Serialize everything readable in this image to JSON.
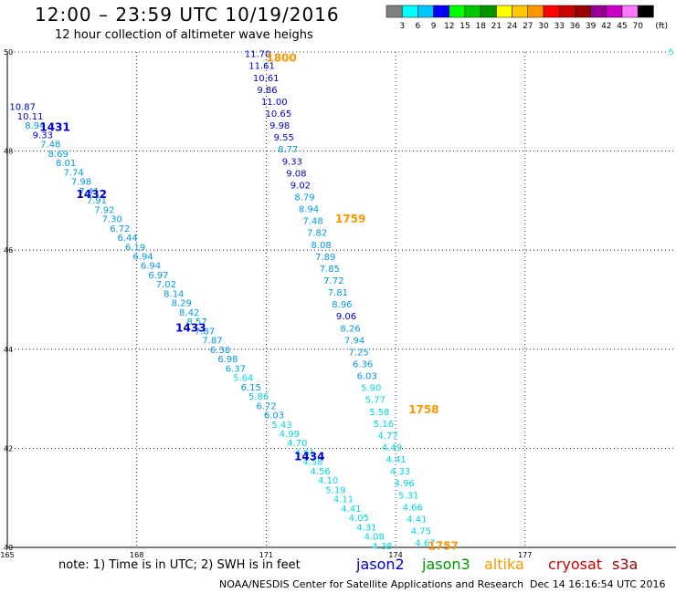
{
  "header": {
    "title": "12:00 – 23:59 UTC 10/19/2016",
    "subtitle": "12 hour collection of altimeter wave heighs"
  },
  "legend": {
    "colors": [
      "#808080",
      "#00ffff",
      "#00c8ff",
      "#0000ff",
      "#00ff00",
      "#00c800",
      "#009600",
      "#ffff00",
      "#ffc800",
      "#ff9600",
      "#ff0000",
      "#c80000",
      "#960000",
      "#960096",
      "#c800c8",
      "#ff78ff",
      "#000000"
    ],
    "labels": [
      "3",
      "6",
      "9",
      "12",
      "15",
      "18",
      "21",
      "24",
      "27",
      "30",
      "33",
      "36",
      "39",
      "42",
      "45",
      "70"
    ],
    "unit": "(ft)"
  },
  "footer": {
    "note": "note:  1) Time is in UTC;  2) SWH is in feet",
    "satellites": [
      {
        "name": "jason2",
        "color": "#0000cc"
      },
      {
        "name": "jason3",
        "color": "#009600"
      },
      {
        "name": "altika",
        "color": "#ff9600"
      },
      {
        "name": "cryosat",
        "color": "#cc0000"
      },
      {
        "name": "s3a",
        "color": "#990000"
      }
    ],
    "credit": "NOAA/NESDIS Center for Satellite Applications and Research",
    "timestamp": "Dec 14 16:16:54 UTC 2016"
  },
  "chart_data": {
    "type": "scatter",
    "x_ticks": [
      "165",
      "168",
      "171",
      "174",
      "177"
    ],
    "y_ticks": [
      "50",
      "48",
      "46",
      "44",
      "42",
      "40"
    ],
    "xlim": [
      165,
      180.5
    ],
    "ylim": [
      40,
      50
    ],
    "corner_label": "5",
    "time_labels": [
      {
        "text": "1431",
        "lon": 165.75,
        "lat": 48.5,
        "color": "#0000cc"
      },
      {
        "text": "1432",
        "lon": 166.6,
        "lat": 47.15,
        "color": "#0000cc"
      },
      {
        "text": "1433",
        "lon": 168.9,
        "lat": 44.45,
        "color": "#0000cc"
      },
      {
        "text": "1434",
        "lon": 171.65,
        "lat": 41.85,
        "color": "#0000cc"
      },
      {
        "text": "1800",
        "lon": 171.0,
        "lat": 49.9,
        "color": "#ff9600"
      },
      {
        "text": "1759",
        "lon": 172.6,
        "lat": 46.65,
        "color": "#ff9600"
      },
      {
        "text": "1758",
        "lon": 174.3,
        "lat": 42.8,
        "color": "#ff9600"
      },
      {
        "text": "1757",
        "lon": 174.75,
        "lat": 40.05,
        "color": "#ff9600"
      }
    ],
    "series": [
      {
        "name": "jason2",
        "start": [
          165.05,
          48.9
        ],
        "end": [
          173.45,
          40.04
        ],
        "values": [
          "10.87",
          "10.11",
          "8.94",
          "9.33",
          "7.48",
          "8.69",
          "8.01",
          "7.74",
          "7.98",
          "7.41",
          "7.91",
          "7.92",
          "7.30",
          "6.72",
          "6.44",
          "6.19",
          "6.94",
          "6.94",
          "6.97",
          "7.02",
          "8.14",
          "8.29",
          "8.42",
          "8.57",
          "7.87",
          "7.87",
          "6.38",
          "6.98",
          "6.37",
          "5.64",
          "6.15",
          "5.86",
          "6.72",
          "6.03",
          "5.43",
          "4.99",
          "4.70",
          "4.61",
          "4.58",
          "4.56",
          "4.10",
          "5.19",
          "4.11",
          "4.41",
          "4.05",
          "4.31",
          "4.08",
          "4.38"
        ]
      },
      {
        "name": "altika",
        "start": [
          170.5,
          49.97
        ],
        "end": [
          174.45,
          40.1
        ],
        "values": [
          "11.70",
          "11.61",
          "10.61",
          "9.86",
          "11.00",
          "10.65",
          "9.98",
          "9.55",
          "8.77",
          "9.33",
          "9.08",
          "9.02",
          "8.79",
          "8.94",
          "7.48",
          "7.82",
          "8.08",
          "7.89",
          "7.85",
          "7.72",
          "7.81",
          "8.96",
          "9.06",
          "8.26",
          "7.94",
          "7.25",
          "6.36",
          "6.03",
          "5.90",
          "5.77",
          "5.58",
          "5.16",
          "4.77",
          "4.49",
          "4.41",
          "4.33",
          "4.96",
          "5.31",
          "4.66",
          "4.41",
          "4.75",
          "4.67"
        ]
      }
    ]
  }
}
